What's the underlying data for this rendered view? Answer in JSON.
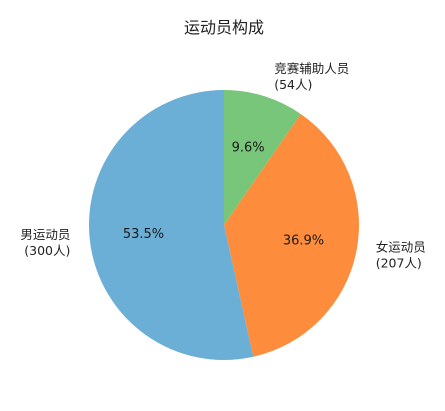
{
  "chart_data": {
    "type": "pie",
    "title": "运动员构成",
    "slices": [
      {
        "label": "竞赛辅助人员",
        "count_text": "(54人)",
        "value": 54,
        "percent_text": "9.6%",
        "color": "#78c679"
      },
      {
        "label": "女运动员",
        "count_text": "(207人)",
        "value": 207,
        "percent_text": "36.9%",
        "color": "#fd8d3c"
      },
      {
        "label": "男运动员",
        "count_text": "(300人)",
        "value": 300,
        "percent_text": "53.5%",
        "color": "#6baed6"
      }
    ],
    "start": "top",
    "direction": "clockwise",
    "legend": "none"
  }
}
